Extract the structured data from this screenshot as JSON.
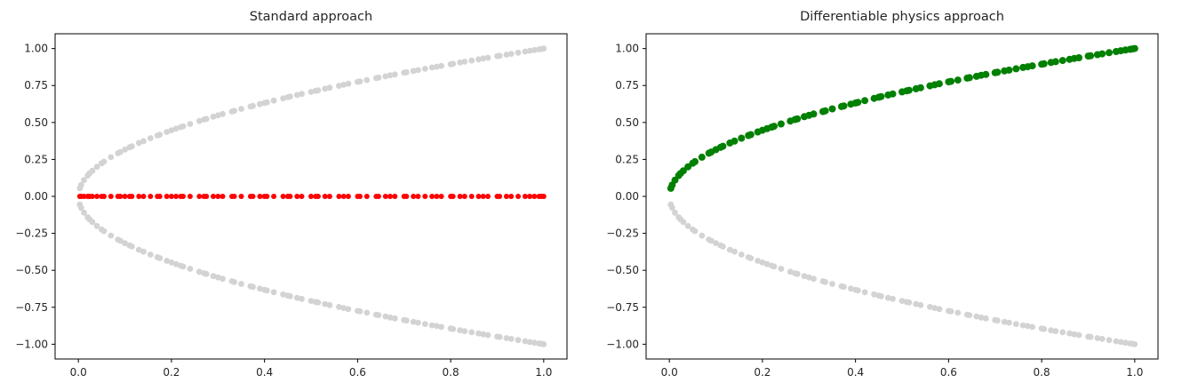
{
  "page": {
    "background": "#ffffff"
  },
  "chart_data": [
    {
      "type": "scatter",
      "title": "Standard approach",
      "xlabel": "",
      "ylabel": "",
      "grid": false,
      "legend": null,
      "xlim": [
        -0.05,
        1.05
      ],
      "ylim": [
        -1.1,
        1.1
      ],
      "xticks": [
        0.0,
        0.2,
        0.4,
        0.6,
        0.8,
        1.0
      ],
      "xtick_labels": [
        "0.0",
        "0.2",
        "0.4",
        "0.6",
        "0.8",
        "1.0"
      ],
      "yticks": [
        -1.0,
        -0.75,
        -0.5,
        -0.25,
        0.0,
        0.25,
        0.5,
        0.75,
        1.0
      ],
      "ytick_labels": [
        "−1.00",
        "−0.75",
        "−0.50",
        "−0.25",
        "0.00",
        "0.25",
        "0.50",
        "0.75",
        "1.00"
      ],
      "x": [
        0.003,
        0.006,
        0.012,
        0.02,
        0.024,
        0.03,
        0.04,
        0.05,
        0.055,
        0.07,
        0.085,
        0.09,
        0.1,
        0.11,
        0.115,
        0.13,
        0.14,
        0.155,
        0.17,
        0.175,
        0.19,
        0.2,
        0.21,
        0.22,
        0.225,
        0.24,
        0.26,
        0.27,
        0.275,
        0.29,
        0.3,
        0.31,
        0.33,
        0.335,
        0.35,
        0.37,
        0.375,
        0.39,
        0.4,
        0.405,
        0.42,
        0.44,
        0.45,
        0.455,
        0.47,
        0.48,
        0.5,
        0.51,
        0.515,
        0.53,
        0.54,
        0.56,
        0.57,
        0.58,
        0.6,
        0.605,
        0.62,
        0.64,
        0.645,
        0.66,
        0.67,
        0.68,
        0.7,
        0.705,
        0.72,
        0.73,
        0.745,
        0.76,
        0.77,
        0.78,
        0.8,
        0.805,
        0.82,
        0.83,
        0.845,
        0.86,
        0.87,
        0.88,
        0.9,
        0.905,
        0.92,
        0.93,
        0.945,
        0.96,
        0.97,
        0.98,
        0.99,
        0.995,
        1.0
      ],
      "series": [
        {
          "name": "solution-upper-branch",
          "relation": "y = sqrt(x)",
          "color": "#d3d3d3",
          "marker_size": 3.4,
          "y": [
            0.055,
            0.077,
            0.11,
            0.141,
            0.155,
            0.173,
            0.2,
            0.224,
            0.235,
            0.265,
            0.292,
            0.3,
            0.316,
            0.332,
            0.339,
            0.361,
            0.374,
            0.394,
            0.412,
            0.418,
            0.436,
            0.447,
            0.458,
            0.469,
            0.474,
            0.49,
            0.51,
            0.52,
            0.524,
            0.539,
            0.548,
            0.557,
            0.574,
            0.579,
            0.592,
            0.608,
            0.612,
            0.624,
            0.632,
            0.636,
            0.648,
            0.663,
            0.671,
            0.675,
            0.686,
            0.693,
            0.707,
            0.714,
            0.718,
            0.728,
            0.735,
            0.748,
            0.755,
            0.762,
            0.775,
            0.778,
            0.787,
            0.8,
            0.803,
            0.812,
            0.819,
            0.825,
            0.837,
            0.84,
            0.849,
            0.854,
            0.863,
            0.872,
            0.877,
            0.883,
            0.894,
            0.897,
            0.906,
            0.911,
            0.919,
            0.927,
            0.933,
            0.938,
            0.949,
            0.951,
            0.959,
            0.964,
            0.972,
            0.98,
            0.985,
            0.99,
            0.995,
            0.997,
            1.0
          ]
        },
        {
          "name": "solution-lower-branch",
          "relation": "y = -sqrt(x)",
          "color": "#d3d3d3",
          "marker_size": 3.4,
          "y": [
            -0.055,
            -0.077,
            -0.11,
            -0.141,
            -0.155,
            -0.173,
            -0.2,
            -0.224,
            -0.235,
            -0.265,
            -0.292,
            -0.3,
            -0.316,
            -0.332,
            -0.339,
            -0.361,
            -0.374,
            -0.394,
            -0.412,
            -0.418,
            -0.436,
            -0.447,
            -0.458,
            -0.469,
            -0.474,
            -0.49,
            -0.51,
            -0.52,
            -0.524,
            -0.539,
            -0.548,
            -0.557,
            -0.574,
            -0.579,
            -0.592,
            -0.608,
            -0.612,
            -0.624,
            -0.632,
            -0.636,
            -0.648,
            -0.663,
            -0.671,
            -0.675,
            -0.686,
            -0.693,
            -0.707,
            -0.714,
            -0.718,
            -0.728,
            -0.735,
            -0.748,
            -0.755,
            -0.762,
            -0.775,
            -0.778,
            -0.787,
            -0.8,
            -0.803,
            -0.812,
            -0.819,
            -0.825,
            -0.837,
            -0.84,
            -0.849,
            -0.854,
            -0.863,
            -0.872,
            -0.877,
            -0.883,
            -0.894,
            -0.897,
            -0.906,
            -0.911,
            -0.919,
            -0.927,
            -0.933,
            -0.938,
            -0.949,
            -0.951,
            -0.959,
            -0.964,
            -0.972,
            -0.98,
            -0.985,
            -0.99,
            -0.995,
            -0.997,
            -1.0
          ]
        },
        {
          "name": "network-prediction",
          "relation": "y = 0",
          "color": "#ff0000",
          "marker_size": 3.0,
          "y_const": 0.0
        }
      ]
    },
    {
      "type": "scatter",
      "title": "Differentiable physics approach",
      "xlabel": "",
      "ylabel": "",
      "grid": false,
      "legend": null,
      "xlim": [
        -0.05,
        1.05
      ],
      "ylim": [
        -1.1,
        1.1
      ],
      "xticks": [
        0.0,
        0.2,
        0.4,
        0.6,
        0.8,
        1.0
      ],
      "xtick_labels": [
        "0.0",
        "0.2",
        "0.4",
        "0.6",
        "0.8",
        "1.0"
      ],
      "yticks": [
        -1.0,
        -0.75,
        -0.5,
        -0.25,
        0.0,
        0.25,
        0.5,
        0.75,
        1.0
      ],
      "ytick_labels": [
        "−1.00",
        "−0.75",
        "−0.50",
        "−0.25",
        "0.00",
        "0.25",
        "0.50",
        "0.75",
        "1.00"
      ],
      "x": [
        0.003,
        0.006,
        0.012,
        0.02,
        0.024,
        0.03,
        0.04,
        0.05,
        0.055,
        0.07,
        0.085,
        0.09,
        0.1,
        0.11,
        0.115,
        0.13,
        0.14,
        0.155,
        0.17,
        0.175,
        0.19,
        0.2,
        0.21,
        0.22,
        0.225,
        0.24,
        0.26,
        0.27,
        0.275,
        0.29,
        0.3,
        0.31,
        0.33,
        0.335,
        0.35,
        0.37,
        0.375,
        0.39,
        0.4,
        0.405,
        0.42,
        0.44,
        0.45,
        0.455,
        0.47,
        0.48,
        0.5,
        0.51,
        0.515,
        0.53,
        0.54,
        0.56,
        0.57,
        0.58,
        0.6,
        0.605,
        0.62,
        0.64,
        0.645,
        0.66,
        0.67,
        0.68,
        0.7,
        0.705,
        0.72,
        0.73,
        0.745,
        0.76,
        0.77,
        0.78,
        0.8,
        0.805,
        0.82,
        0.83,
        0.845,
        0.86,
        0.87,
        0.88,
        0.9,
        0.905,
        0.92,
        0.93,
        0.945,
        0.96,
        0.97,
        0.98,
        0.99,
        0.995,
        1.0
      ],
      "series": [
        {
          "name": "solution-upper-branch",
          "relation": "y = sqrt(x)",
          "color": "#d3d3d3",
          "marker_size": 3.4,
          "y": [
            0.055,
            0.077,
            0.11,
            0.141,
            0.155,
            0.173,
            0.2,
            0.224,
            0.235,
            0.265,
            0.292,
            0.3,
            0.316,
            0.332,
            0.339,
            0.361,
            0.374,
            0.394,
            0.412,
            0.418,
            0.436,
            0.447,
            0.458,
            0.469,
            0.474,
            0.49,
            0.51,
            0.52,
            0.524,
            0.539,
            0.548,
            0.557,
            0.574,
            0.579,
            0.592,
            0.608,
            0.612,
            0.624,
            0.632,
            0.636,
            0.648,
            0.663,
            0.671,
            0.675,
            0.686,
            0.693,
            0.707,
            0.714,
            0.718,
            0.728,
            0.735,
            0.748,
            0.755,
            0.762,
            0.775,
            0.778,
            0.787,
            0.8,
            0.803,
            0.812,
            0.819,
            0.825,
            0.837,
            0.84,
            0.849,
            0.854,
            0.863,
            0.872,
            0.877,
            0.883,
            0.894,
            0.897,
            0.906,
            0.911,
            0.919,
            0.927,
            0.933,
            0.938,
            0.949,
            0.951,
            0.959,
            0.964,
            0.972,
            0.98,
            0.985,
            0.99,
            0.995,
            0.997,
            1.0
          ]
        },
        {
          "name": "solution-lower-branch",
          "relation": "y = -sqrt(x)",
          "color": "#d3d3d3",
          "marker_size": 3.4,
          "y": [
            -0.055,
            -0.077,
            -0.11,
            -0.141,
            -0.155,
            -0.173,
            -0.2,
            -0.224,
            -0.235,
            -0.265,
            -0.292,
            -0.3,
            -0.316,
            -0.332,
            -0.339,
            -0.361,
            -0.374,
            -0.394,
            -0.412,
            -0.418,
            -0.436,
            -0.447,
            -0.458,
            -0.469,
            -0.474,
            -0.49,
            -0.51,
            -0.52,
            -0.524,
            -0.539,
            -0.548,
            -0.557,
            -0.574,
            -0.579,
            -0.592,
            -0.608,
            -0.612,
            -0.624,
            -0.632,
            -0.636,
            -0.648,
            -0.663,
            -0.671,
            -0.675,
            -0.686,
            -0.693,
            -0.707,
            -0.714,
            -0.718,
            -0.728,
            -0.735,
            -0.748,
            -0.755,
            -0.762,
            -0.775,
            -0.778,
            -0.787,
            -0.8,
            -0.803,
            -0.812,
            -0.819,
            -0.825,
            -0.837,
            -0.84,
            -0.849,
            -0.854,
            -0.863,
            -0.872,
            -0.877,
            -0.883,
            -0.894,
            -0.897,
            -0.906,
            -0.911,
            -0.919,
            -0.927,
            -0.933,
            -0.938,
            -0.949,
            -0.951,
            -0.959,
            -0.964,
            -0.972,
            -0.98,
            -0.985,
            -0.99,
            -0.995,
            -0.997,
            -1.0
          ]
        },
        {
          "name": "network-prediction",
          "relation": "y = sqrt(x)",
          "color": "#008000",
          "marker_size": 4.0,
          "y": [
            0.055,
            0.077,
            0.11,
            0.141,
            0.155,
            0.173,
            0.2,
            0.224,
            0.235,
            0.265,
            0.292,
            0.3,
            0.316,
            0.332,
            0.339,
            0.361,
            0.374,
            0.394,
            0.412,
            0.418,
            0.436,
            0.447,
            0.458,
            0.469,
            0.474,
            0.49,
            0.51,
            0.52,
            0.524,
            0.539,
            0.548,
            0.557,
            0.574,
            0.579,
            0.592,
            0.608,
            0.612,
            0.624,
            0.632,
            0.636,
            0.648,
            0.663,
            0.671,
            0.675,
            0.686,
            0.693,
            0.707,
            0.714,
            0.718,
            0.728,
            0.735,
            0.748,
            0.755,
            0.762,
            0.775,
            0.778,
            0.787,
            0.8,
            0.803,
            0.812,
            0.819,
            0.825,
            0.837,
            0.84,
            0.849,
            0.854,
            0.863,
            0.872,
            0.877,
            0.883,
            0.894,
            0.897,
            0.906,
            0.911,
            0.919,
            0.927,
            0.933,
            0.938,
            0.949,
            0.951,
            0.959,
            0.964,
            0.972,
            0.98,
            0.985,
            0.99,
            0.995,
            0.997,
            1.0
          ]
        }
      ]
    }
  ]
}
